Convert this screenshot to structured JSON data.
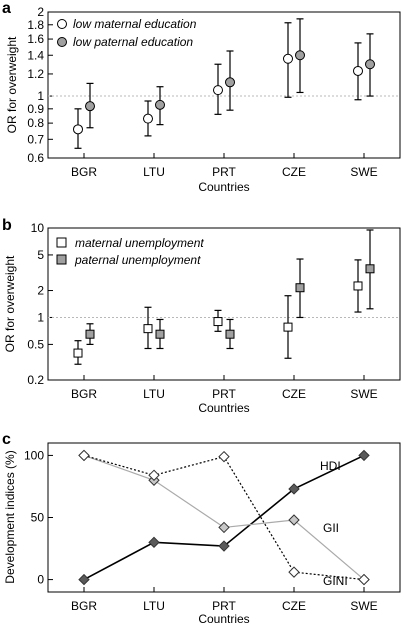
{
  "figure": {
    "panels": [
      "a",
      "b",
      "c"
    ]
  },
  "chart_data": [
    {
      "panel": "a",
      "type": "scatter",
      "style": "error-bars",
      "categories": [
        "BGR",
        "LTU",
        "PRT",
        "CZE",
        "SWE"
      ],
      "xlabel": "Countries",
      "ylabel": "OR for overweight",
      "yscale": "log",
      "ylim": [
        0.6,
        2
      ],
      "yticks": [
        0.6,
        0.7,
        0.8,
        0.9,
        1,
        1.2,
        1.4,
        1.6,
        1.8,
        2
      ],
      "yticklabels": [
        "0.6",
        "0.7",
        "0.8",
        "0.9",
        "1",
        "1.2",
        "1.4",
        "1.6",
        "1.8",
        "2"
      ],
      "reference_line": 1,
      "legend_position": "top-left",
      "series": [
        {
          "name": "low maternal education",
          "marker": "circle",
          "fill": "#ffffff",
          "values": [
            0.76,
            0.83,
            1.05,
            1.36,
            1.23
          ],
          "lower": [
            0.65,
            0.72,
            0.86,
            0.99,
            0.97
          ],
          "upper": [
            0.9,
            0.96,
            1.3,
            1.83,
            1.55
          ]
        },
        {
          "name": "low paternal education",
          "marker": "circle",
          "fill": "#a0a0a0",
          "values": [
            0.92,
            0.93,
            1.12,
            1.4,
            1.3
          ],
          "lower": [
            0.77,
            0.79,
            0.89,
            1.03,
            1.0
          ],
          "upper": [
            1.11,
            1.08,
            1.45,
            1.89,
            1.67
          ]
        }
      ]
    },
    {
      "panel": "b",
      "type": "scatter",
      "style": "error-bars",
      "categories": [
        "BGR",
        "LTU",
        "PRT",
        "CZE",
        "SWE"
      ],
      "xlabel": "Countries",
      "ylabel": "OR for overweight",
      "yscale": "log",
      "ylim": [
        0.2,
        10
      ],
      "yticks": [
        0.2,
        0.5,
        1,
        2,
        5,
        10
      ],
      "yticklabels": [
        "0.2",
        "0.5",
        "1",
        "2",
        "5",
        "10"
      ],
      "reference_line": 1,
      "legend_position": "top-left",
      "series": [
        {
          "name": "maternal unemployment",
          "marker": "square",
          "fill": "#ffffff",
          "values": [
            0.4,
            0.75,
            0.9,
            0.78,
            2.25
          ],
          "lower": [
            0.3,
            0.45,
            0.7,
            0.35,
            1.15
          ],
          "upper": [
            0.55,
            1.3,
            1.2,
            1.75,
            4.4
          ]
        },
        {
          "name": "paternal unemployment",
          "marker": "square",
          "fill": "#a0a0a0",
          "values": [
            0.65,
            0.65,
            0.65,
            2.15,
            3.5
          ],
          "lower": [
            0.5,
            0.45,
            0.45,
            1.0,
            1.25
          ],
          "upper": [
            0.85,
            0.95,
            0.95,
            4.5,
            9.5
          ]
        }
      ]
    },
    {
      "panel": "c",
      "type": "line",
      "categories": [
        "BGR",
        "LTU",
        "PRT",
        "CZE",
        "SWE"
      ],
      "xlabel": "Countries",
      "ylabel": "Development indices (%)",
      "ylim": [
        -10,
        110
      ],
      "yticks": [
        0,
        50,
        100
      ],
      "yticklabels": [
        "0",
        "50",
        "100"
      ],
      "marker": "diamond",
      "series": [
        {
          "name": "HDI",
          "values": [
            0,
            30,
            27,
            73,
            100
          ],
          "color": "#000000",
          "dash": "solid",
          "fill": "#5a5a5a"
        },
        {
          "name": "GII",
          "values": [
            100,
            80,
            42,
            48,
            0
          ],
          "color": "#aaaaaa",
          "dash": "solid",
          "fill": "#c8c8c8"
        },
        {
          "name": "GINI",
          "values": [
            100,
            84,
            99,
            6,
            0
          ],
          "color": "#000000",
          "dash": "dotted",
          "fill": "#ffffff"
        }
      ]
    }
  ]
}
